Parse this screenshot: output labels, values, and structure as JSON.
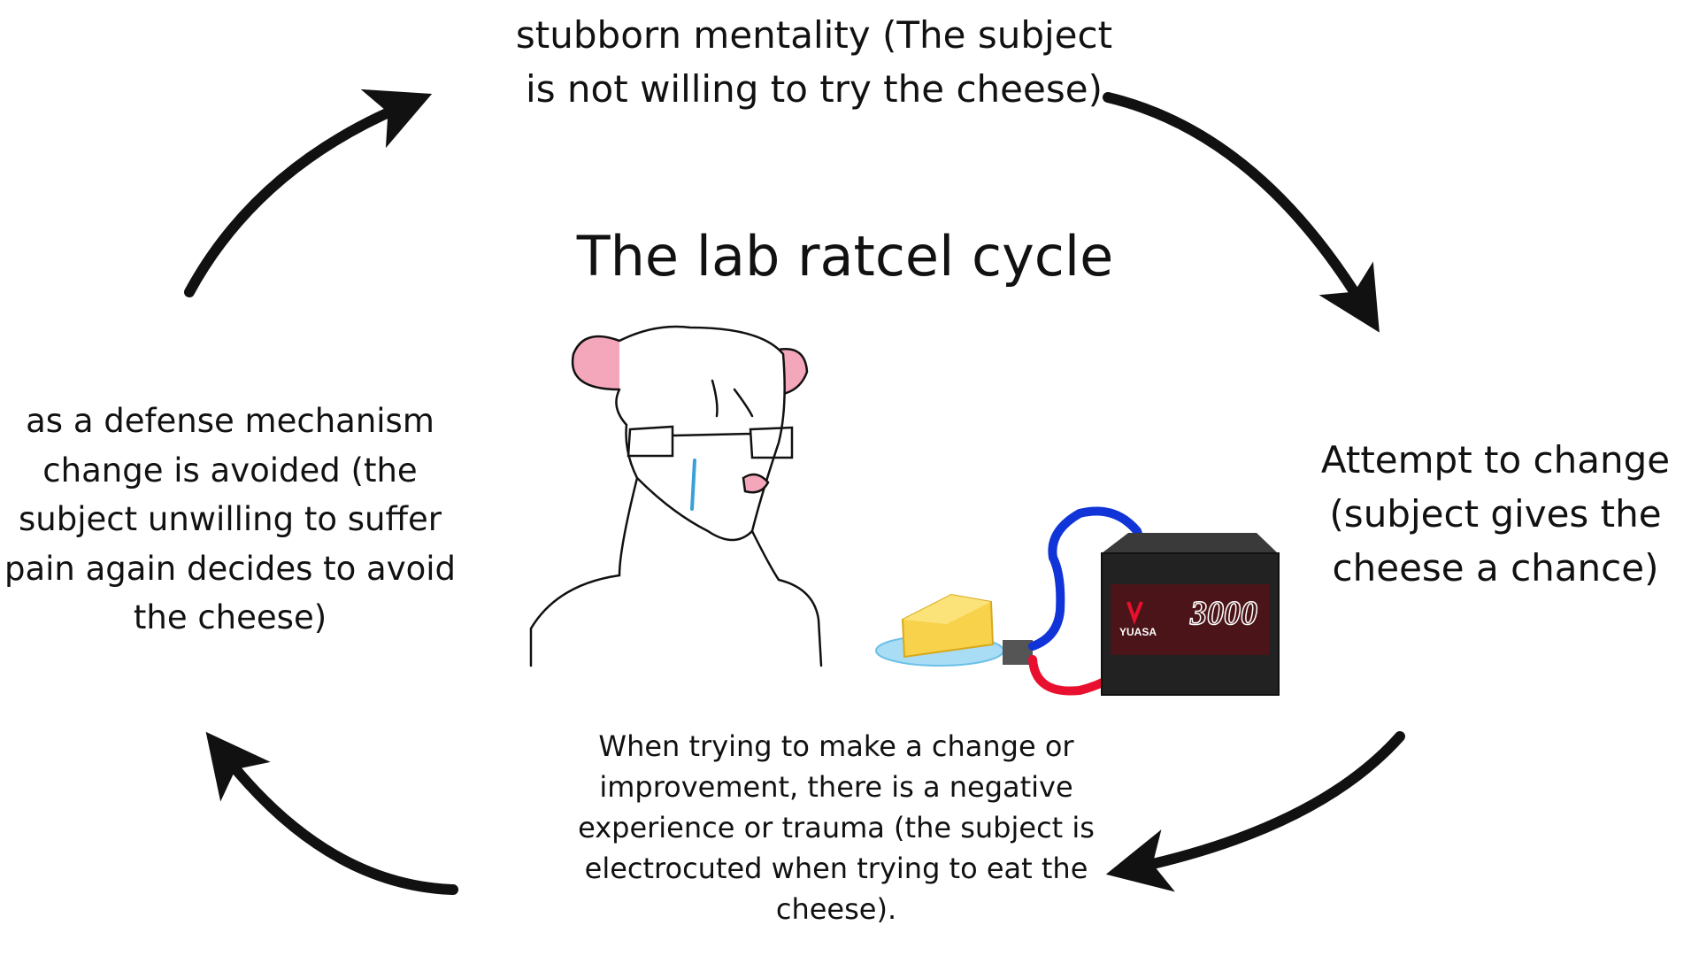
{
  "title": "The lab ratcel cycle",
  "steps": {
    "top": "stubborn mentality (The subject is not willing to try the cheese)",
    "right": "Attempt to change (subject gives the cheese a chance)",
    "bottom": "When trying to make a change or improvement, there is a negative experience or trauma (the subject is electrocuted when trying to eat the cheese).",
    "left": "as a defense mechanism change is avoided (the subject unwilling to suffer pain again decides to avoid the cheese)"
  },
  "battery": {
    "brand": "YUASA",
    "model": "3000"
  },
  "colors": {
    "arrow": "#111111",
    "ear": "#f4a7bb",
    "tear": "#3aa0d8",
    "cheese": "#f7d24a",
    "wire_positive": "#e8102e",
    "wire_negative": "#1034d8"
  }
}
